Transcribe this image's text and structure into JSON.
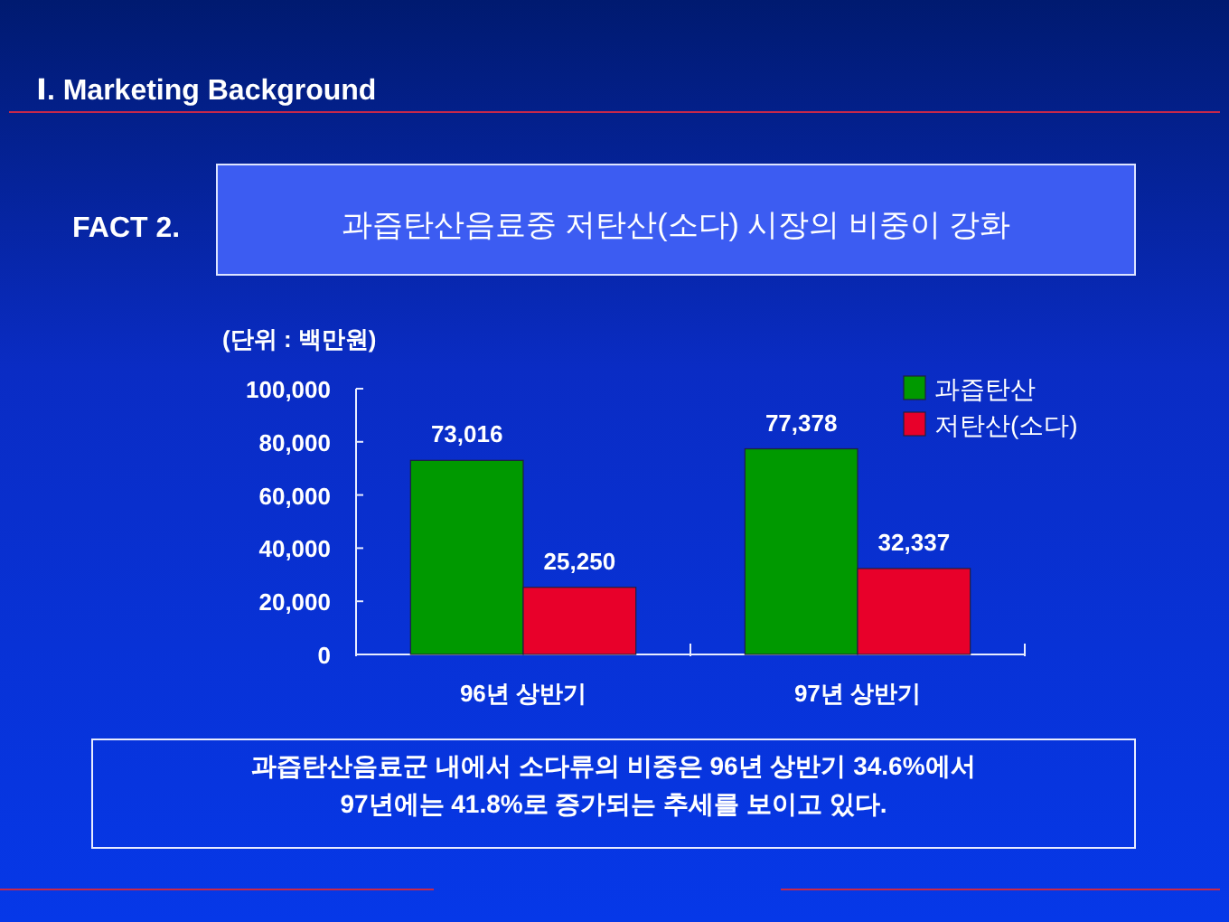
{
  "chart_data": {
    "type": "bar",
    "title": "과즙탄산음료중 저탄산(소다) 시장의 비중이 강화",
    "ylabel": "(단위 : 백만원)",
    "categories": [
      "96년 상반기",
      "97년 상반기"
    ],
    "series": [
      {
        "name": "과즙탄산",
        "color": "#009900",
        "values": [
          73016,
          77378
        ],
        "value_labels": [
          "73,016",
          "77,378"
        ]
      },
      {
        "name": "저탄산(소다)",
        "color": "#e8002a",
        "values": [
          25250,
          32337
        ],
        "value_labels": [
          "25,250",
          "32,337"
        ]
      }
    ],
    "ylim": [
      0,
      100000
    ],
    "yticks": [
      0,
      {
        "value": 20000,
        "label": "20,000"
      },
      {
        "value": 40000,
        "label": "40,000"
      },
      {
        "value": 60000,
        "label": "60,000"
      },
      {
        "value": 80000,
        "label": "80,000"
      },
      {
        "value": 100000,
        "label": "100,000"
      }
    ],
    "legend": "top right",
    "grid": false,
    "annotations": [
      "Ⅰ. Marketing Background",
      "FACT 2.",
      "과즙탄산음료군 내에서 소다류의 비중은 96년 상반기 34.6%에서 97년에는 41.8%로 증가되는 추세를 보이고 있다."
    ]
  }
}
